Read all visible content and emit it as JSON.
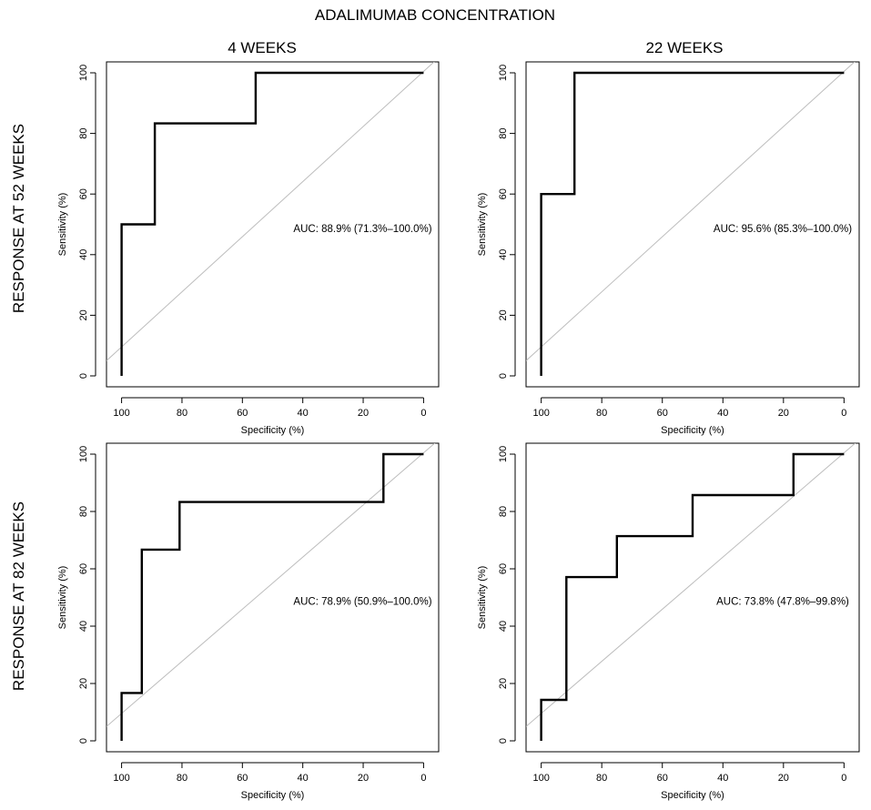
{
  "figure": {
    "title": "ADALIMUMAB CONCENTRATION",
    "column_titles": [
      "4 WEEKS",
      "22 WEEKS"
    ],
    "row_titles": [
      "RESPONSE AT 52 WEEKS",
      "RESPONSE AT 82 WEEKS"
    ]
  },
  "chart_data": [
    {
      "type": "line",
      "subtype": "roc",
      "id": "4w-52w",
      "row": 0,
      "col": 0,
      "xlabel": "Specificity (%)",
      "ylabel": "Sensitivity (%)",
      "x_ticks": [
        100,
        80,
        60,
        40,
        20,
        0
      ],
      "y_ticks": [
        0,
        20,
        40,
        60,
        80,
        100
      ],
      "xlim": [
        105,
        -5
      ],
      "ylim": [
        0,
        100
      ],
      "reference_line": "diagonal",
      "annotation": "AUC: 88.9% (71.3%–100.0%)",
      "points": [
        [
          100,
          0
        ],
        [
          100,
          50
        ],
        [
          89,
          50
        ],
        [
          89,
          83.3
        ],
        [
          55.6,
          83.3
        ],
        [
          55.6,
          100
        ],
        [
          0,
          100
        ]
      ]
    },
    {
      "type": "line",
      "subtype": "roc",
      "id": "22w-52w",
      "row": 0,
      "col": 1,
      "xlabel": "Specificity (%)",
      "ylabel": "Sensitivity (%)",
      "x_ticks": [
        100,
        80,
        60,
        40,
        20,
        0
      ],
      "y_ticks": [
        0,
        20,
        40,
        60,
        80,
        100
      ],
      "xlim": [
        105,
        -5
      ],
      "ylim": [
        0,
        100
      ],
      "reference_line": "diagonal",
      "annotation": "AUC: 95.6% (85.3%–100.0%)",
      "points": [
        [
          100,
          0
        ],
        [
          100,
          60
        ],
        [
          89,
          60
        ],
        [
          89,
          100
        ],
        [
          0,
          100
        ]
      ]
    },
    {
      "type": "line",
      "subtype": "roc",
      "id": "4w-82w",
      "row": 1,
      "col": 0,
      "xlabel": "Specificity (%)",
      "ylabel": "Sensitivity (%)",
      "x_ticks": [
        100,
        80,
        60,
        40,
        20,
        0
      ],
      "y_ticks": [
        0,
        20,
        40,
        60,
        80,
        100
      ],
      "xlim": [
        105,
        -5
      ],
      "ylim": [
        0,
        100
      ],
      "reference_line": "diagonal",
      "annotation": "AUC: 78.9% (50.9%–100.0%)",
      "points": [
        [
          100,
          0
        ],
        [
          100,
          16.7
        ],
        [
          93.3,
          16.7
        ],
        [
          93.3,
          66.7
        ],
        [
          80.8,
          66.7
        ],
        [
          80.8,
          83.3
        ],
        [
          13.3,
          83.3
        ],
        [
          13.3,
          100
        ],
        [
          0,
          100
        ]
      ]
    },
    {
      "type": "line",
      "subtype": "roc",
      "id": "22w-82w",
      "row": 1,
      "col": 1,
      "xlabel": "Specificity (%)",
      "ylabel": "Sensitivity (%)",
      "x_ticks": [
        100,
        80,
        60,
        40,
        20,
        0
      ],
      "y_ticks": [
        0,
        20,
        40,
        60,
        80,
        100
      ],
      "xlim": [
        105,
        -5
      ],
      "ylim": [
        0,
        100
      ],
      "reference_line": "diagonal",
      "annotation": "AUC: 73.8% (47.8%–99.8%)",
      "points": [
        [
          100,
          0
        ],
        [
          100,
          14.3
        ],
        [
          91.7,
          14.3
        ],
        [
          91.7,
          57.1
        ],
        [
          75,
          57.1
        ],
        [
          75,
          71.4
        ],
        [
          50,
          71.4
        ],
        [
          50,
          85.7
        ],
        [
          16.7,
          85.7
        ],
        [
          16.7,
          100
        ],
        [
          0,
          100
        ]
      ]
    }
  ]
}
